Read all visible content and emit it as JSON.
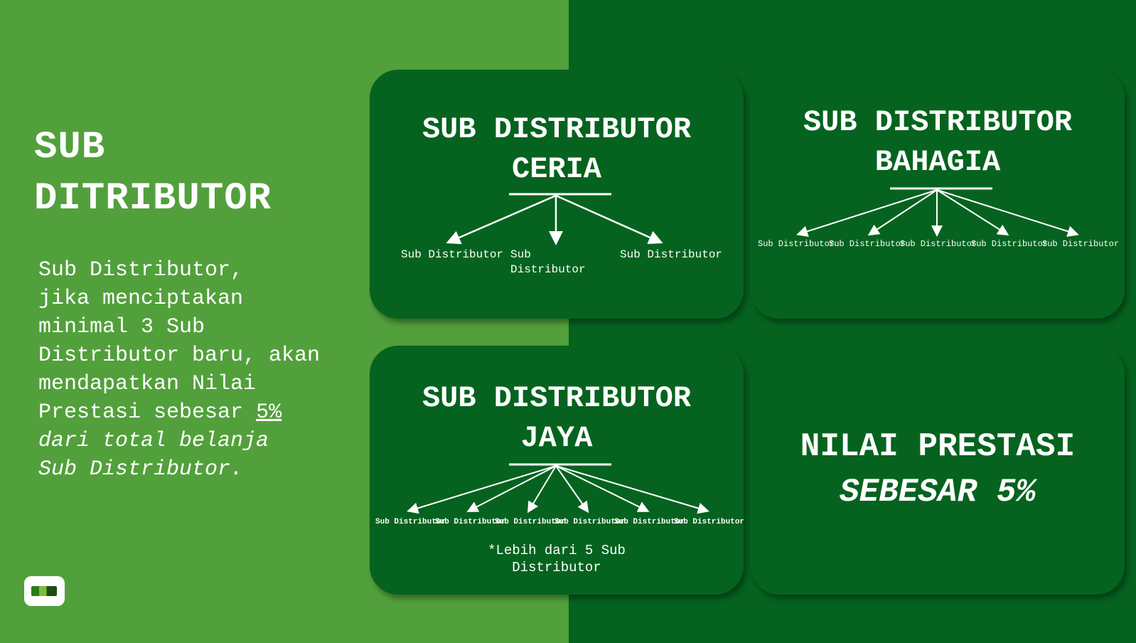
{
  "colors": {
    "light_green": "#52A03B",
    "dark_green": "#05631F",
    "text": "#FFFFFF"
  },
  "left": {
    "title_line1": "SUB",
    "title_line2": "DITRIBUTOR",
    "desc_lines": [
      "Sub Distributor,",
      "jika menciptakan",
      "minimal 3 Sub",
      "Distributor baru, akan",
      "mendapatkan Nilai"
    ],
    "desc_prestasi": "Prestasi sebesar ",
    "desc_pct": "5%",
    "desc_italic_1": "dari total belanja",
    "desc_italic_2": "Sub Distributor."
  },
  "cards": {
    "ceria": {
      "title_line1": "SUB DISTRIBUTOR",
      "title_line2": "CERIA",
      "nodes": [
        "Sub Distributor",
        "Sub",
        "Distributor",
        "Sub Distributor"
      ]
    },
    "bahagia": {
      "title_line1": "SUB DISTRIBUTOR",
      "title_line2": "BAHAGIA",
      "nodes": [
        "Sub Distributor",
        "Sub Distributor",
        "Sub Distributor",
        "Sub Distributor",
        "Sub Distributor"
      ]
    },
    "jaya": {
      "title_line1": "SUB DISTRIBUTOR",
      "title_line2": "JAYA",
      "nodes": [
        "Sub Distributor",
        "Sub Distributor",
        "Sub Distributor",
        "Sub Distributor",
        "Sub Distributor",
        "Sub Distributor"
      ],
      "note_line1": "*Lebih dari 5 Sub",
      "note_line2": "Distributor"
    },
    "nilai": {
      "line1": "NILAI PRESTASI",
      "line2": "SEBESAR 5%"
    }
  },
  "icons": {
    "logo": "company-logo-icon"
  }
}
